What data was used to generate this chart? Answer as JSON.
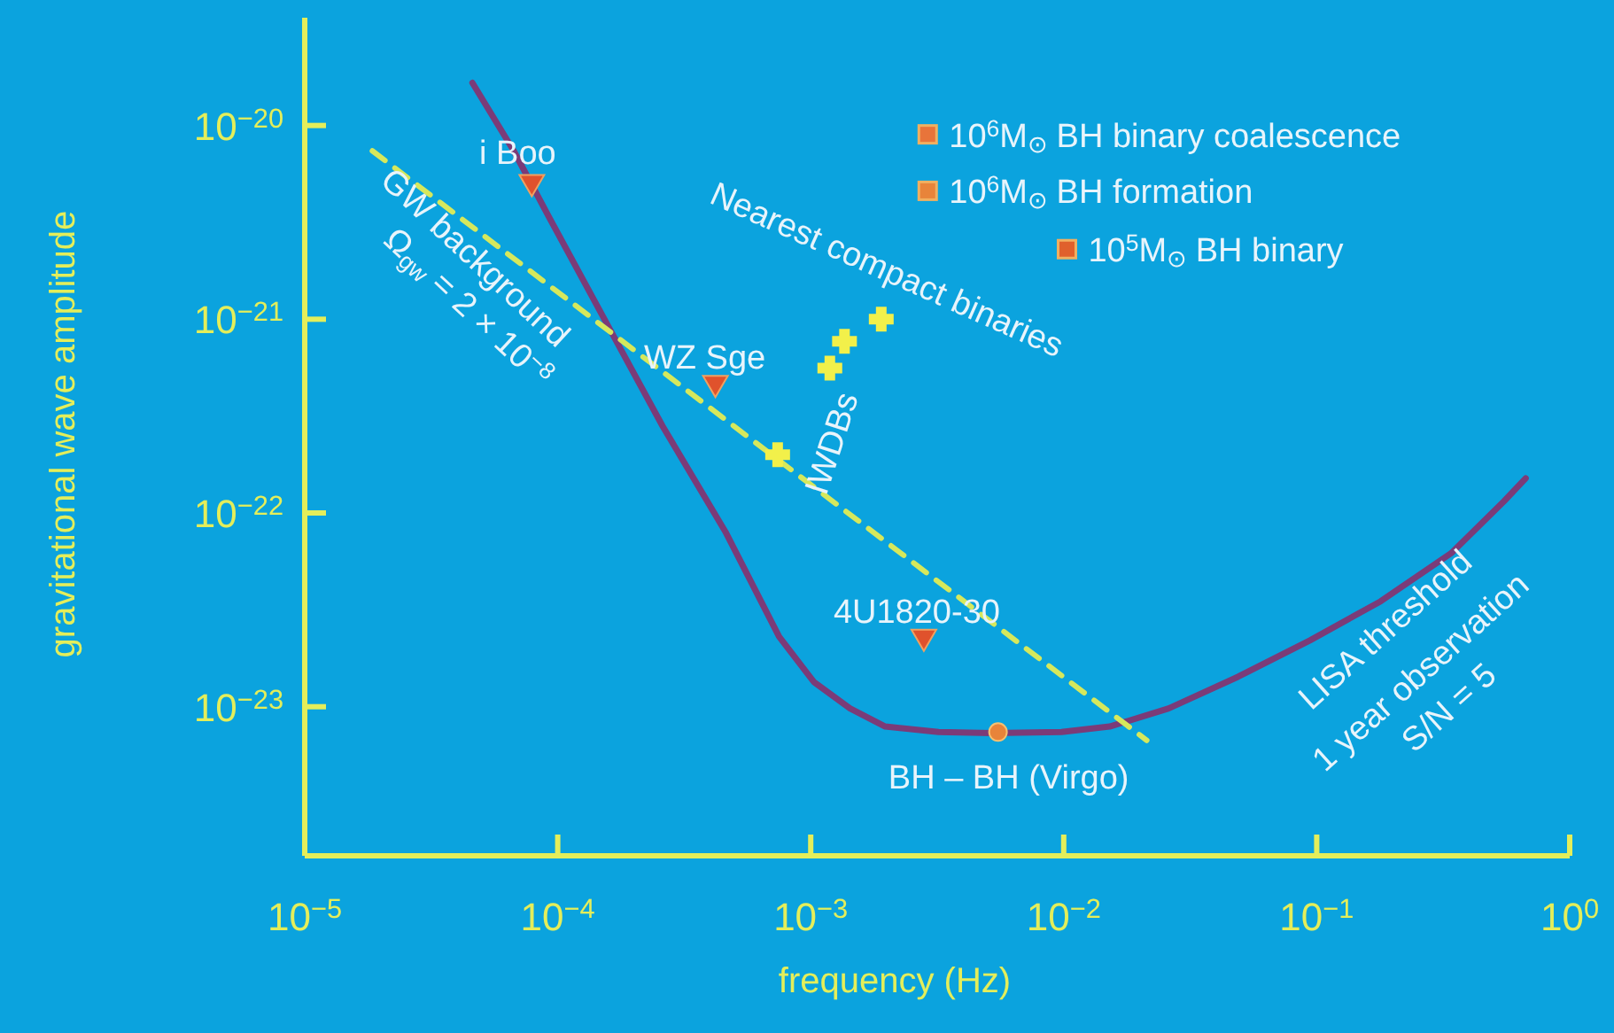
{
  "chart_data": {
    "type": "line",
    "xlabel": "frequency (Hz)",
    "ylabel": "gravitational wave amplitude",
    "log": "xy",
    "grid": false,
    "xlim": [
      1e-05,
      1
    ],
    "ylim": [
      1.7e-24,
      3.6e-20
    ],
    "xticks": [
      {
        "value": 1e-05,
        "label": "10$^{−5}$"
      },
      {
        "value": 0.0001,
        "label": "10$^{−4}$"
      },
      {
        "value": 0.001,
        "label": "10$^{−3}$"
      },
      {
        "value": 0.01,
        "label": "10$^{−2}$"
      },
      {
        "value": 0.1,
        "label": "10$^{−1}$"
      },
      {
        "value": 1,
        "label": "10$^{0}$"
      }
    ],
    "yticks": [
      {
        "value": 1e-20,
        "label": "10$^{−20}$"
      },
      {
        "value": 1e-21,
        "label": "10$^{−21}$"
      },
      {
        "value": 1e-22,
        "label": "10$^{−22}$"
      },
      {
        "value": 1e-23,
        "label": "10$^{−23}$"
      }
    ],
    "series": [
      {
        "color": "#7b3b78",
        "line_style": "solid",
        "x": [
          4.6e-05,
          6.7e-05,
          9.2e-05,
          0.000167,
          0.00026,
          0.00046,
          0.00075,
          0.00103,
          0.00143,
          0.00197,
          0.0032,
          0.0052,
          0.0098,
          0.0152,
          0.026,
          0.049,
          0.094,
          0.179,
          0.34,
          0.55,
          0.67
        ],
        "values": [
          1.66e-20,
          7.4e-21,
          3.4e-21,
          8.1e-22,
          2.8e-22,
          8e-23,
          2.3e-23,
          1.34e-23,
          9.8e-24,
          7.9e-24,
          7.4e-24,
          7.3e-24,
          7.4e-24,
          7.9e-24,
          9.8e-24,
          1.43e-23,
          2.2e-23,
          3.5e-23,
          6.2e-23,
          1.15e-22,
          1.51e-22
        ]
      },
      {
        "type": "line",
        "color": "#d6e85c",
        "line_style": "dashed",
        "x": [
          1.85e-05,
          0.0213
        ],
        "values": [
          7.4e-21,
          6.7e-24
        ]
      },
      {
        "type": "scatter",
        "name": "i Boo",
        "color": "#e0522c",
        "marker": "triangle",
        "x": [
          7.9e-05
        ],
        "values": [
          4.9e-21
        ]
      },
      {
        "type": "scatter",
        "name": "WZ Sge",
        "color": "#e0522c",
        "marker": "triangle",
        "x": [
          0.00042
        ],
        "values": [
          4.5e-22
        ]
      },
      {
        "type": "scatter",
        "name": "4U1820-30",
        "color": "#e0522c",
        "marker": "triangle",
        "x": [
          0.0028
        ],
        "values": [
          2.2e-23
        ]
      },
      {
        "type": "scatter",
        "name": "BH – BH (Virgo)",
        "color": "#e8843a",
        "marker": "circle",
        "x": [
          0.0055
        ],
        "values": [
          7.4e-24
        ]
      },
      {
        "type": "scatter",
        "name": "IWDBs",
        "color": "#f2f04a",
        "marker": "cross",
        "x": [
          0.0019,
          0.00136,
          0.00119,
          0.00074
        ],
        "values": [
          1e-21,
          7.7e-22,
          5.6e-22,
          2e-22
        ]
      },
      {
        "type": "scatter",
        "name": "10$^{6}$M$_{⊙}$ BH binary coalescence",
        "color": "#e8743a",
        "marker": "square",
        "x": [
          0.0029
        ],
        "values": [
          9e-21
        ]
      },
      {
        "type": "scatter",
        "name": "10$^{6}$M$_{⊙}$ BH formation",
        "color": "#e8843a",
        "marker": "square",
        "x": [
          0.0029
        ],
        "values": [
          4.6e-21
        ]
      },
      {
        "type": "scatter",
        "name": "10$^{5}$M$_{⊙}$ BH binary",
        "color": "#e0602c",
        "marker": "square",
        "x": [
          0.0103
        ],
        "values": [
          2.3e-21
        ]
      }
    ],
    "annotations": [
      "Nearest compact binaries",
      "GW background",
      "Ω$_{gw}$ = 2 × 10$^{−8}$",
      "LISA threshold",
      "1 year observation",
      "S/N = 5"
    ]
  }
}
